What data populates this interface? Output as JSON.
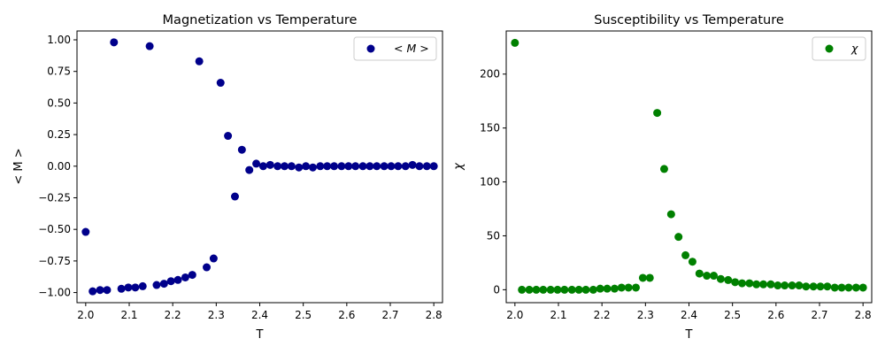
{
  "chart_data": [
    {
      "type": "scatter",
      "title": "Magnetization vs Temperature",
      "xlabel": "T",
      "ylabel": "< M >",
      "xlim": [
        1.98,
        2.82
      ],
      "ylim": [
        -1.08,
        1.07
      ],
      "xticks": [
        "2.0",
        "2.1",
        "2.2",
        "2.3",
        "2.4",
        "2.5",
        "2.6",
        "2.7",
        "2.8"
      ],
      "xtick_values": [
        2.0,
        2.1,
        2.2,
        2.3,
        2.4,
        2.5,
        2.6,
        2.7,
        2.8
      ],
      "yticks": [
        "−1.00",
        "−0.75",
        "−0.50",
        "−0.25",
        "0.00",
        "0.25",
        "0.50",
        "0.75",
        "1.00"
      ],
      "ytick_values": [
        -1.0,
        -0.75,
        -0.5,
        -0.25,
        0.0,
        0.25,
        0.5,
        0.75,
        1.0
      ],
      "legend_position": "top-right",
      "color": "#00008b",
      "series": [
        {
          "name": "< M >",
          "x": [
            2.0,
            2.016,
            2.033,
            2.049,
            2.065,
            2.082,
            2.098,
            2.114,
            2.131,
            2.147,
            2.163,
            2.18,
            2.196,
            2.212,
            2.229,
            2.245,
            2.261,
            2.278,
            2.294,
            2.31,
            2.327,
            2.343,
            2.359,
            2.376,
            2.392,
            2.408,
            2.424,
            2.441,
            2.457,
            2.473,
            2.49,
            2.506,
            2.522,
            2.539,
            2.555,
            2.571,
            2.588,
            2.604,
            2.62,
            2.637,
            2.653,
            2.669,
            2.686,
            2.702,
            2.718,
            2.735,
            2.751,
            2.767,
            2.784,
            2.8
          ],
          "y": [
            -0.52,
            -0.99,
            -0.98,
            -0.98,
            0.98,
            -0.97,
            -0.96,
            -0.96,
            -0.95,
            0.95,
            -0.94,
            -0.93,
            -0.91,
            -0.9,
            -0.88,
            -0.86,
            0.83,
            -0.8,
            -0.73,
            0.66,
            0.24,
            -0.24,
            0.13,
            -0.03,
            0.02,
            0.0,
            0.01,
            0.0,
            0.0,
            0.0,
            -0.01,
            0.0,
            -0.01,
            0.0,
            0.0,
            0.0,
            0.0,
            0.0,
            0.0,
            0.0,
            0.0,
            0.0,
            0.0,
            0.0,
            0.0,
            0.0,
            0.01,
            0.0,
            0.0,
            0.0
          ]
        }
      ]
    },
    {
      "type": "scatter",
      "title": "Susceptibility vs Temperature",
      "xlabel": "T",
      "ylabel": "χ",
      "xlim": [
        1.98,
        2.82
      ],
      "ylim": [
        -12,
        240
      ],
      "xticks": [
        "2.0",
        "2.1",
        "2.2",
        "2.3",
        "2.4",
        "2.5",
        "2.6",
        "2.7",
        "2.8"
      ],
      "xtick_values": [
        2.0,
        2.1,
        2.2,
        2.3,
        2.4,
        2.5,
        2.6,
        2.7,
        2.8
      ],
      "yticks": [
        "0",
        "50",
        "100",
        "150",
        "200"
      ],
      "ytick_values": [
        0,
        50,
        100,
        150,
        200
      ],
      "legend_position": "top-right",
      "color": "#008000",
      "series": [
        {
          "name": "χ",
          "x": [
            2.0,
            2.016,
            2.033,
            2.049,
            2.065,
            2.082,
            2.098,
            2.114,
            2.131,
            2.147,
            2.163,
            2.18,
            2.196,
            2.212,
            2.229,
            2.245,
            2.261,
            2.278,
            2.294,
            2.31,
            2.327,
            2.343,
            2.359,
            2.376,
            2.392,
            2.408,
            2.424,
            2.441,
            2.457,
            2.473,
            2.49,
            2.506,
            2.522,
            2.539,
            2.555,
            2.571,
            2.588,
            2.604,
            2.62,
            2.637,
            2.653,
            2.669,
            2.686,
            2.702,
            2.718,
            2.735,
            2.751,
            2.767,
            2.784,
            2.8
          ],
          "y": [
            229,
            0,
            0,
            0,
            0,
            0,
            0,
            0,
            0,
            0,
            0,
            0,
            1,
            1,
            1,
            2,
            2,
            2,
            11,
            11,
            164,
            112,
            70,
            49,
            32,
            26,
            15,
            13,
            13,
            10,
            9,
            7,
            6,
            6,
            5,
            5,
            5,
            4,
            4,
            4,
            4,
            3,
            3,
            3,
            3,
            2,
            2,
            2,
            2,
            2
          ]
        }
      ]
    }
  ]
}
